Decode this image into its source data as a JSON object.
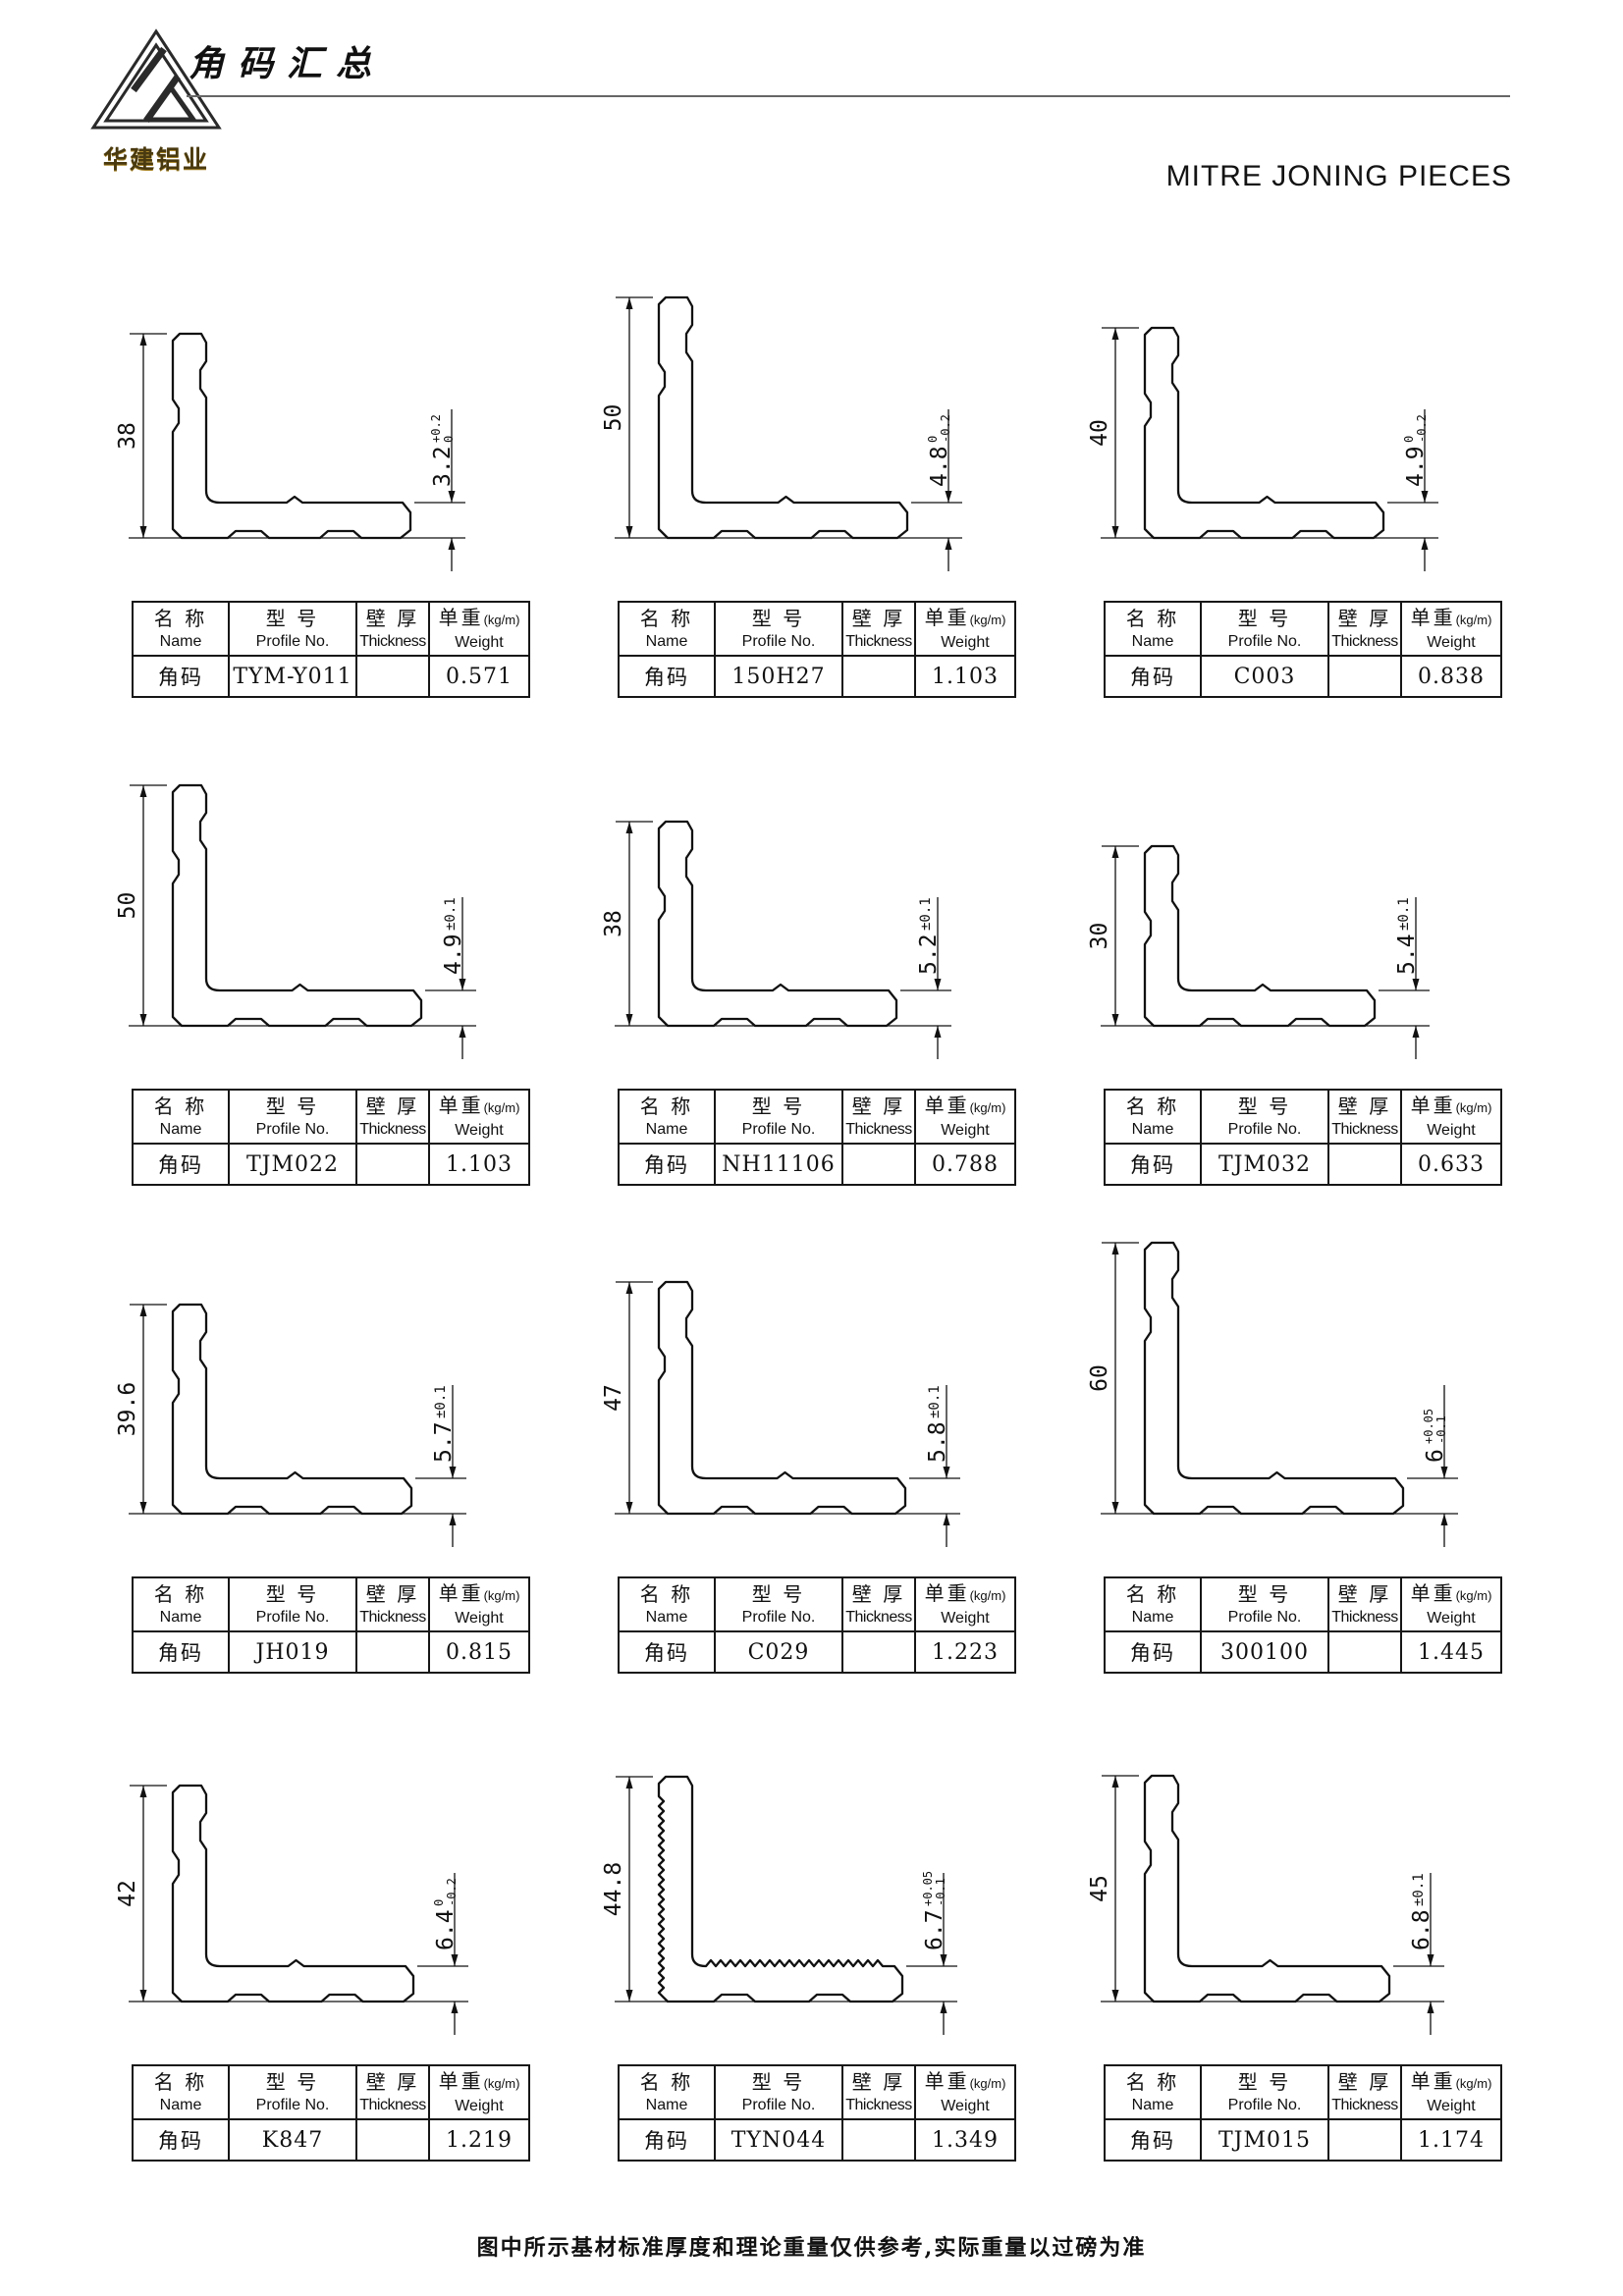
{
  "header": {
    "logo_text": "华建铝业",
    "title_cn": "角码汇总",
    "title_en": "MITRE JONING PIECES"
  },
  "table": {
    "headers": [
      {
        "cn": "名 称",
        "en": "Name"
      },
      {
        "cn": "型 号",
        "en": "Profile No."
      },
      {
        "cn": "壁 厚",
        "en": "Thickness"
      },
      {
        "cn": "单重",
        "unit": "(kg/m)",
        "en": "Weight"
      }
    ]
  },
  "items": [
    {
      "name": "角码",
      "profile_no": "TYM-Y011",
      "thickness": "",
      "weight": "0.571",
      "dim_height": "38",
      "dim_thickness": "3.2",
      "tol_upper": "+0.2",
      "tol_lower": "0"
    },
    {
      "name": "角码",
      "profile_no": "150H27",
      "thickness": "",
      "weight": "1.103",
      "dim_height": "50",
      "dim_thickness": "4.8",
      "tol_upper": "0",
      "tol_lower": "-0.2"
    },
    {
      "name": "角码",
      "profile_no": "C003",
      "thickness": "",
      "weight": "0.838",
      "dim_height": "40",
      "dim_thickness": "4.9",
      "tol_upper": "0",
      "tol_lower": "-0.2"
    },
    {
      "name": "角码",
      "profile_no": "TJM022",
      "thickness": "",
      "weight": "1.103",
      "dim_height": "50",
      "dim_thickness": "4.9",
      "tol": "±0.1"
    },
    {
      "name": "角码",
      "profile_no": "NH11106",
      "thickness": "",
      "weight": "0.788",
      "dim_height": "38",
      "dim_thickness": "5.2",
      "tol": "±0.1"
    },
    {
      "name": "角码",
      "profile_no": "TJM032",
      "thickness": "",
      "weight": "0.633",
      "dim_height": "30",
      "dim_thickness": "5.4",
      "tol": "±0.1"
    },
    {
      "name": "角码",
      "profile_no": "JH019",
      "thickness": "",
      "weight": "0.815",
      "dim_height": "39.6",
      "dim_thickness": "5.7",
      "tol": "±0.1"
    },
    {
      "name": "角码",
      "profile_no": "C029",
      "thickness": "",
      "weight": "1.223",
      "dim_height": "47",
      "dim_thickness": "5.8",
      "tol": "±0.1"
    },
    {
      "name": "角码",
      "profile_no": "300100",
      "thickness": "",
      "weight": "1.445",
      "dim_height": "60",
      "dim_thickness": "6",
      "tol_upper": "+0.05",
      "tol_lower": "-0.1"
    },
    {
      "name": "角码",
      "profile_no": "K847",
      "thickness": "",
      "weight": "1.219",
      "dim_height": "42",
      "dim_thickness": "6.4",
      "tol_upper": "0",
      "tol_lower": "-0.2"
    },
    {
      "name": "角码",
      "profile_no": "TYN044",
      "thickness": "",
      "weight": "1.349",
      "dim_height": "44.8",
      "dim_thickness": "6.7",
      "tol_upper": "+0.05",
      "tol_lower": "-0.1",
      "serrated": true
    },
    {
      "name": "角码",
      "profile_no": "TJM015",
      "thickness": "",
      "weight": "1.174",
      "dim_height": "45",
      "dim_thickness": "6.8",
      "tol": "±0.1"
    }
  ],
  "footer": {
    "note": "图中所示基材标准厚度和理论重量仅供参考,实际重量以过磅为准"
  },
  "colors": {
    "ink": "#111111",
    "rule": "#666666",
    "logo_gold": "#a8862a"
  }
}
